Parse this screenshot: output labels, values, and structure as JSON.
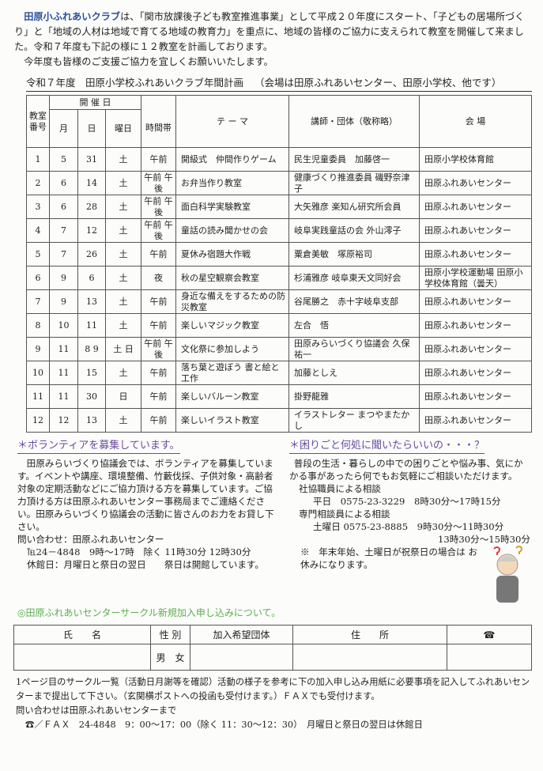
{
  "intro": {
    "club_name": "田原小ふれあいクラブ",
    "line1": "は、「関市放課後子ども教室推進事業」として平成２０年度にスタート、「子どもの居場所づくり」と「地域の人材は地域で育てる地域の教育力」を重点に、地域の皆様のご協力に支えられて教室を開催して来ました。令和７年度も下記の様に１２教室を計画しております。",
    "line2": "今年度も皆様のご支援ご協力を宜しくお願いいたします。"
  },
  "plan": {
    "title": "令和７年度　田原小学校ふれあいクラブ年間計画",
    "note": "（会場は田原ふれあいセンター、田原小学校、他です）",
    "headers": {
      "no": "教室番号",
      "date_group": "開 催 日",
      "month": "月",
      "day": "日",
      "weekday": "曜日",
      "time": "時間帯",
      "theme": "テ ー マ",
      "lecturer": "講師・団体（敬称略）",
      "venue": "会 場"
    },
    "rows": [
      {
        "no": "1",
        "month": "5",
        "day": "31",
        "weekday": "土",
        "time": "午前",
        "theme": "開級式　仲間作りゲーム",
        "lecturer": "民生児童委員　加藤啓一",
        "venue": "田原小学校体育館"
      },
      {
        "no": "2",
        "month": "6",
        "day": "14",
        "weekday": "土",
        "time": "午前 午後",
        "theme": "お弁当作り教室",
        "lecturer": "健康づくり推進委員 磯野奈津子",
        "venue": "田原ふれあいセンター"
      },
      {
        "no": "3",
        "month": "6",
        "day": "28",
        "weekday": "土",
        "time": "午前 午後",
        "theme": "面白科学実験教室",
        "lecturer": "大矢雅彦 楽知ん研究所会員",
        "venue": "田原ふれあいセンター"
      },
      {
        "no": "4",
        "month": "7",
        "day": "12",
        "weekday": "土",
        "time": "午前 午後",
        "theme": "童話の読み聞かせの会",
        "lecturer": "岐阜実践童話の会 外山澪子",
        "venue": "田原ふれあいセンター"
      },
      {
        "no": "5",
        "month": "7",
        "day": "26",
        "weekday": "土",
        "time": "午前",
        "theme": "夏休み宿題大作戦",
        "lecturer": "粟倉美敏　塚原裕司",
        "venue": "田原ふれあいセンター"
      },
      {
        "no": "6",
        "month": "9",
        "day": "6",
        "weekday": "土",
        "time": "夜",
        "theme": "秋の星空観察会教室",
        "lecturer": "杉浦雅彦 岐阜東天文同好会",
        "venue": "田原小学校運動場 田原小学校体育館（曇天）"
      },
      {
        "no": "7",
        "month": "9",
        "day": "13",
        "weekday": "土",
        "time": "午前",
        "theme": "身近な備えをするための防災教室",
        "lecturer": "谷尾勝之　赤十字岐阜支部",
        "venue": "田原ふれあいセンター"
      },
      {
        "no": "8",
        "month": "10",
        "day": "11",
        "weekday": "土",
        "time": "午前",
        "theme": "楽しいマジック教室",
        "lecturer": "左合　悟",
        "venue": "田原ふれあいセンター"
      },
      {
        "no": "9",
        "month": "11",
        "day": "8 9",
        "weekday": "土 日",
        "time": "午前 午後",
        "theme": "文化祭に参加しよう",
        "lecturer": "田原みらいづくり協議会 久保祐一",
        "venue": "田原ふれあいセンター"
      },
      {
        "no": "10",
        "month": "11",
        "day": "15",
        "weekday": "土",
        "time": "午前",
        "theme": "落ち葉と遊ぼう 書と絵と工作",
        "lecturer": "加藤としえ",
        "venue": "田原ふれあいセンター"
      },
      {
        "no": "11",
        "month": "11",
        "day": "30",
        "weekday": "日",
        "time": "午前",
        "theme": "楽しいバルーン教室",
        "lecturer": "掛野龍雅",
        "venue": "田原ふれあいセンター"
      },
      {
        "no": "12",
        "month": "12",
        "day": "13",
        "weekday": "土",
        "time": "午前",
        "theme": "楽しいイラスト教室",
        "lecturer": "イラストレター まつやまたかし",
        "venue": "田原ふれあいセンター"
      }
    ]
  },
  "volunteer": {
    "heading": "＊ボランティアを募集しています。",
    "body": "田原みらいづくり協議会では、ボランティアを募集しています。イベントや講座、環境整備、竹藪伐採、子供対象・高齢者対象の定期活動などにご協力頂ける方を募集しています。ご協力頂ける方は田原ふれあいセンター事務局までご連絡ください。田原みらいづくり協議会の活動に皆さんのお力をお貸し下さい。",
    "contact": "問い合わせ：田原ふれあいセンター",
    "tel": "℡24－4848　9時～17時　除く 11時30分 12時30分",
    "closed": "休館日：月曜日と祭日の翌日　　祭日は開館しています。"
  },
  "consult": {
    "heading": "＊困りごと何処に聞いたらいいの・・・？",
    "body": "普段の生活・暮らしの中での困りごとや悩み事、気にかかる事があったら何でもお気軽にご相談いただけます。",
    "staff_label": "社協職員による相談",
    "staff_line": "平日　0575-23-3229　8時30分～17時15分",
    "expert_label": "専門相談員による相談",
    "expert_line1": "土曜日 0575-23-8885　9時30分～11時30分",
    "expert_line2": "13時30分～15時30分",
    "note": "※　年末年始、土曜日が祝祭日の場合は お休みになります。"
  },
  "circle": {
    "heading": "◎田原ふれあいセンターサークル新規加入申し込みについて。"
  },
  "form": {
    "headers": [
      "氏　　名",
      "性 別",
      "加入希望団体",
      "住　　所",
      "☎"
    ],
    "gender": "男　女"
  },
  "footer": {
    "line1": "1ページ目のサークル一覧（活動日月謝等を確認）活動の様子を参考に下の加入申し込み用紙に必要事項を記入してふれあいセンターまで提出して下さい。（玄関横ポストへの投函も受付けます。）ＦＡＸでも受付けます。",
    "line2": "問い合わせは田原ふれあいセンターまで",
    "line3": "☎／ＦＡＸ　24-4848　9：00～17：00（除く 11：30～12：30）　月曜日と祭日の翌日は休館日"
  },
  "colors": {
    "club": "#2a4f9e",
    "heading": "#6a4aa0",
    "green": "#5cae4e"
  }
}
